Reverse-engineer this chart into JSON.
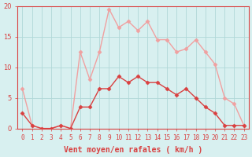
{
  "hours": [
    0,
    1,
    2,
    3,
    4,
    5,
    6,
    7,
    8,
    9,
    10,
    11,
    12,
    13,
    14,
    15,
    16,
    17,
    18,
    19,
    20,
    21,
    22,
    23
  ],
  "wind_avg": [
    2.5,
    0.5,
    0,
    0,
    0.5,
    0,
    3.5,
    3.5,
    6.5,
    6.5,
    8.5,
    7.5,
    8.5,
    7.5,
    7.5,
    6.5,
    5.5,
    6.5,
    5,
    3.5,
    2.5,
    0.5,
    0.5,
    0.5
  ],
  "wind_gust": [
    6.5,
    0.5,
    0,
    0,
    0.5,
    0,
    12.5,
    8,
    12.5,
    19.5,
    16.5,
    17.5,
    16,
    17.5,
    14.5,
    14.5,
    12.5,
    13,
    14.5,
    12.5,
    10.5,
    5,
    4,
    0.5
  ],
  "color_avg": "#d94040",
  "color_gust": "#f0a0a0",
  "bg_color": "#d8f0f0",
  "grid_color": "#b0d8d8",
  "xlabel": "Vent moyen/en rafales ( km/h )",
  "ylim": [
    0,
    20
  ],
  "xlim_min": -0.5,
  "xlim_max": 23.5,
  "yticks": [
    0,
    5,
    10,
    15,
    20
  ],
  "xticks": [
    0,
    1,
    2,
    3,
    4,
    5,
    6,
    7,
    8,
    9,
    10,
    11,
    12,
    13,
    14,
    15,
    16,
    17,
    18,
    19,
    20,
    21,
    22,
    23
  ],
  "tick_fontsize": 5.5,
  "xlabel_fontsize": 7
}
